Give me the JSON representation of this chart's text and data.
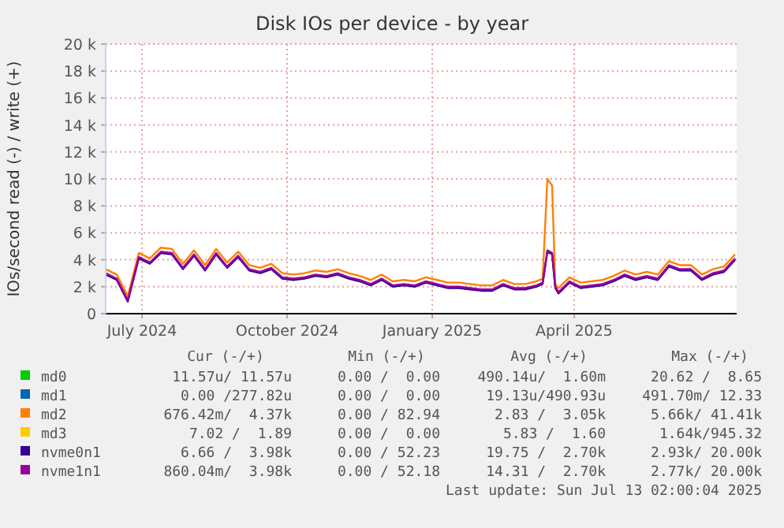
{
  "chart_data": {
    "type": "line",
    "title": "Disk IOs per device - by year",
    "ylabel": "IOs/second read (-) / write (+)",
    "x": [
      "2024-06-08",
      "2024-06-15",
      "2024-06-22",
      "2024-06-29",
      "2024-07-06",
      "2024-07-13",
      "2024-07-20",
      "2024-07-27",
      "2024-08-03",
      "2024-08-10",
      "2024-08-17",
      "2024-08-24",
      "2024-08-31",
      "2024-09-07",
      "2024-09-14",
      "2024-09-21",
      "2024-09-28",
      "2024-10-05",
      "2024-10-12",
      "2024-10-19",
      "2024-10-26",
      "2024-11-02",
      "2024-11-09",
      "2024-11-16",
      "2024-11-23",
      "2024-11-30",
      "2024-12-07",
      "2024-12-14",
      "2024-12-21",
      "2024-12-28",
      "2025-01-04",
      "2025-01-11",
      "2025-01-18",
      "2025-01-25",
      "2025-02-01",
      "2025-02-08",
      "2025-02-15",
      "2025-02-22",
      "2025-03-01",
      "2025-03-08",
      "2025-03-12",
      "2025-03-15",
      "2025-03-18",
      "2025-03-20",
      "2025-03-22",
      "2025-03-29",
      "2025-04-05",
      "2025-04-12",
      "2025-04-19",
      "2025-04-26",
      "2025-05-03",
      "2025-05-10",
      "2025-05-17",
      "2025-05-24",
      "2025-05-31",
      "2025-06-07",
      "2025-06-14",
      "2025-06-21",
      "2025-06-28",
      "2025-07-05",
      "2025-07-12"
    ],
    "series": [
      {
        "name": "md0",
        "color": "#00cc00",
        "values": [
          null,
          null,
          null,
          null,
          null,
          null,
          null,
          null,
          null,
          null,
          null,
          null,
          null,
          null,
          null,
          null,
          null,
          null,
          null,
          null,
          null,
          null,
          null,
          null,
          null,
          null,
          null,
          null,
          null,
          null,
          null,
          null,
          null,
          null,
          null,
          null,
          null,
          null,
          null,
          null,
          null,
          null,
          null,
          null,
          null,
          null,
          null,
          null,
          null,
          null,
          null,
          null,
          null,
          null,
          null,
          null,
          null,
          null,
          null,
          null,
          null
        ]
      },
      {
        "name": "md1",
        "color": "#0066b3",
        "values": [
          null,
          null,
          null,
          null,
          null,
          null,
          null,
          null,
          null,
          null,
          null,
          null,
          null,
          null,
          null,
          null,
          null,
          null,
          null,
          null,
          null,
          null,
          null,
          null,
          null,
          null,
          null,
          null,
          null,
          null,
          null,
          null,
          null,
          null,
          null,
          null,
          null,
          null,
          null,
          null,
          null,
          null,
          null,
          null,
          null,
          null,
          null,
          null,
          null,
          null,
          null,
          null,
          null,
          null,
          null,
          null,
          null,
          null,
          null,
          null,
          null
        ]
      },
      {
        "name": "md2",
        "color": "#ff8000",
        "values": [
          3300,
          2900,
          1300,
          4500,
          4100,
          4900,
          4800,
          3700,
          4700,
          3600,
          4800,
          3800,
          4600,
          3600,
          3400,
          3700,
          3000,
          2900,
          3000,
          3200,
          3100,
          3300,
          3000,
          2800,
          2500,
          2900,
          2400,
          2500,
          2400,
          2700,
          2500,
          2300,
          2300,
          2200,
          2100,
          2100,
          2500,
          2200,
          2200,
          2400,
          2600,
          10000,
          9500,
          2200,
          1900,
          2700,
          2300,
          2400,
          2500,
          2800,
          3200,
          2900,
          3100,
          2900,
          3900,
          3600,
          3600,
          2900,
          3300,
          3500,
          4400
        ]
      },
      {
        "name": "md3",
        "color": "#ffcc00",
        "values": [
          null,
          null,
          null,
          null,
          null,
          null,
          null,
          null,
          null,
          null,
          null,
          null,
          null,
          null,
          null,
          null,
          null,
          null,
          null,
          null,
          null,
          null,
          null,
          null,
          null,
          null,
          null,
          null,
          null,
          null,
          null,
          null,
          null,
          null,
          null,
          null,
          null,
          null,
          null,
          null,
          null,
          null,
          null,
          null,
          null,
          null,
          null,
          null,
          null,
          null,
          null,
          null,
          null,
          null,
          null,
          null,
          null,
          null,
          null,
          null,
          null
        ]
      },
      {
        "name": "nvme0n1",
        "color": "#330099",
        "values": [
          2900,
          2500,
          900,
          4100,
          3700,
          4500,
          4400,
          3300,
          4300,
          3200,
          4400,
          3400,
          4200,
          3200,
          3000,
          3300,
          2600,
          2500,
          2600,
          2800,
          2700,
          2900,
          2600,
          2400,
          2100,
          2500,
          2000,
          2100,
          2000,
          2300,
          2100,
          1900,
          1900,
          1800,
          1700,
          1700,
          2100,
          1800,
          1800,
          2000,
          2200,
          4600,
          4400,
          1900,
          1500,
          2300,
          1900,
          2000,
          2100,
          2400,
          2800,
          2500,
          2700,
          2500,
          3500,
          3200,
          3200,
          2500,
          2900,
          3100,
          4000
        ]
      },
      {
        "name": "nvme1n1",
        "color": "#990099",
        "values": [
          3000,
          2600,
          1000,
          4200,
          3800,
          4600,
          4500,
          3400,
          4400,
          3300,
          4500,
          3500,
          4300,
          3300,
          3100,
          3400,
          2700,
          2600,
          2700,
          2900,
          2800,
          3000,
          2700,
          2500,
          2200,
          2600,
          2100,
          2200,
          2100,
          2400,
          2200,
          2000,
          2000,
          1900,
          1800,
          1800,
          2200,
          1900,
          1900,
          2100,
          2300,
          4700,
          4500,
          2000,
          1600,
          2400,
          2000,
          2100,
          2200,
          2500,
          2900,
          2600,
          2800,
          2600,
          3600,
          3300,
          3300,
          2600,
          3000,
          3200,
          4100
        ]
      }
    ],
    "xlim": [
      "2024-06-08",
      "2025-07-13"
    ],
    "xticks": [
      {
        "value": "2024-07-01",
        "label": "July 2024"
      },
      {
        "value": "2024-10-01",
        "label": "October 2024"
      },
      {
        "value": "2025-01-01",
        "label": "January 2025"
      },
      {
        "value": "2025-04-01",
        "label": "April 2025"
      }
    ],
    "ylim": [
      0,
      20000
    ],
    "yticks": [
      {
        "value": 0,
        "label": "0"
      },
      {
        "value": 2000,
        "label": "2 k"
      },
      {
        "value": 4000,
        "label": "4 k"
      },
      {
        "value": 6000,
        "label": "6 k"
      },
      {
        "value": 8000,
        "label": "8 k"
      },
      {
        "value": 10000,
        "label": "10 k"
      },
      {
        "value": 12000,
        "label": "12 k"
      },
      {
        "value": 14000,
        "label": "14 k"
      },
      {
        "value": 16000,
        "label": "16 k"
      },
      {
        "value": 18000,
        "label": "18 k"
      },
      {
        "value": 20000,
        "label": "20 k"
      }
    ],
    "grid": true,
    "legend": "bottom",
    "annotations": [
      "Cur (-/+)",
      "Min (-/+)",
      "Avg (-/+)",
      "Max (-/+)",
      "11.57u/ 11.57u",
      "0.00 /  0.00",
      "490.14u/  1.60m",
      "20.62 /  8.65",
      "0.00 /277.82u",
      "0.00 /  0.00",
      "19.13u/490.93u",
      "491.70m/ 12.33",
      "676.42m/  4.37k",
      "0.00 / 82.94",
      "2.83 /  3.05k",
      "5.66k/ 41.41k",
      "7.02 /  1.89",
      "0.00 /  0.00",
      "5.83 /  1.60",
      "1.64k/945.32",
      "6.66 /  3.98k",
      "0.00 / 52.23",
      "19.75 /  2.70k",
      "2.93k/ 20.00k",
      "860.04m/  3.98k",
      "0.00 / 52.18",
      "14.31 /  2.70k",
      "2.77k/ 20.00k",
      "Last update: Sun Jul 13 02:00:04 2025"
    ]
  }
}
